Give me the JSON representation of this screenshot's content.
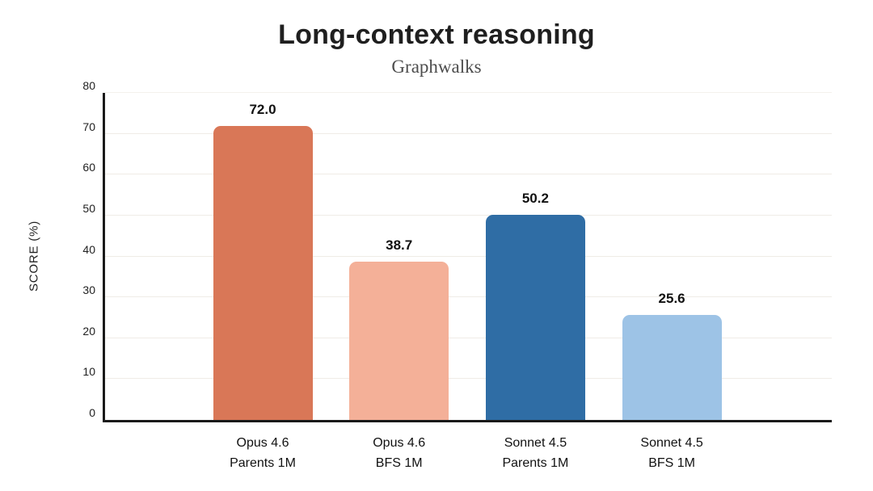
{
  "chart_data": {
    "type": "bar",
    "title": "Long-context reasoning",
    "subtitle": "Graphwalks",
    "xlabel": "",
    "ylabel": "SCORE (%)",
    "categories": [
      [
        "Opus 4.6",
        "Parents 1M"
      ],
      [
        "Opus 4.6",
        "BFS 1M"
      ],
      [
        "Sonnet 4.5",
        "Parents 1M"
      ],
      [
        "Sonnet 4.5",
        "BFS 1M"
      ]
    ],
    "values": [
      72.0,
      38.7,
      50.2,
      25.6
    ],
    "value_labels": [
      "72.0",
      "38.7",
      "50.2",
      "25.6"
    ],
    "bar_colors": [
      "#D97757",
      "#F4B098",
      "#2F6DA5",
      "#9DC3E6"
    ],
    "ylim": [
      0,
      80
    ],
    "yticks": [
      0,
      10,
      20,
      30,
      40,
      50,
      60,
      70,
      80
    ],
    "grid": "horizontal",
    "legend_position": "none",
    "colors": {
      "axis": "#1a1a1a",
      "grid": "#efece6",
      "title_text": "#1f1f1f",
      "subtitle_text": "#4d4d4d",
      "tick_text": "#1f1f1f",
      "value_text": "#111111",
      "background": "#ffffff"
    }
  }
}
